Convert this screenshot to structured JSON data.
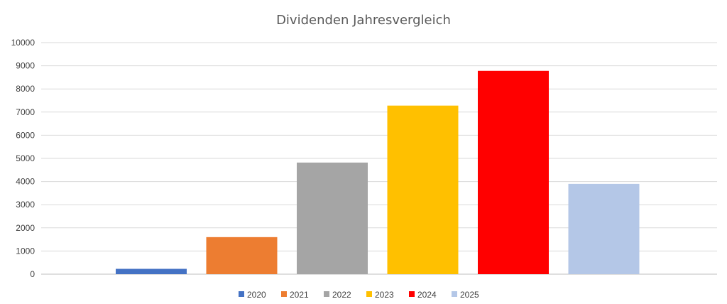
{
  "chart_data": {
    "type": "bar",
    "title": "Dividenden Jahresvergleich",
    "xlabel": "",
    "ylabel": "",
    "ylim": [
      0,
      10000
    ],
    "yticks": [
      0,
      1000,
      2000,
      3000,
      4000,
      5000,
      6000,
      7000,
      8000,
      9000,
      10000
    ],
    "grid": true,
    "legend_position": "bottom",
    "series": [
      {
        "name": "2020",
        "value": 230,
        "color": "#4472C4"
      },
      {
        "name": "2021",
        "value": 1600,
        "color": "#ED7D31"
      },
      {
        "name": "2022",
        "value": 4820,
        "color": "#A5A5A5"
      },
      {
        "name": "2023",
        "value": 7280,
        "color": "#FFC000"
      },
      {
        "name": "2024",
        "value": 8780,
        "color": "#FF0000"
      },
      {
        "name": "2025",
        "value": 3900,
        "color": "#B4C7E7"
      }
    ]
  }
}
